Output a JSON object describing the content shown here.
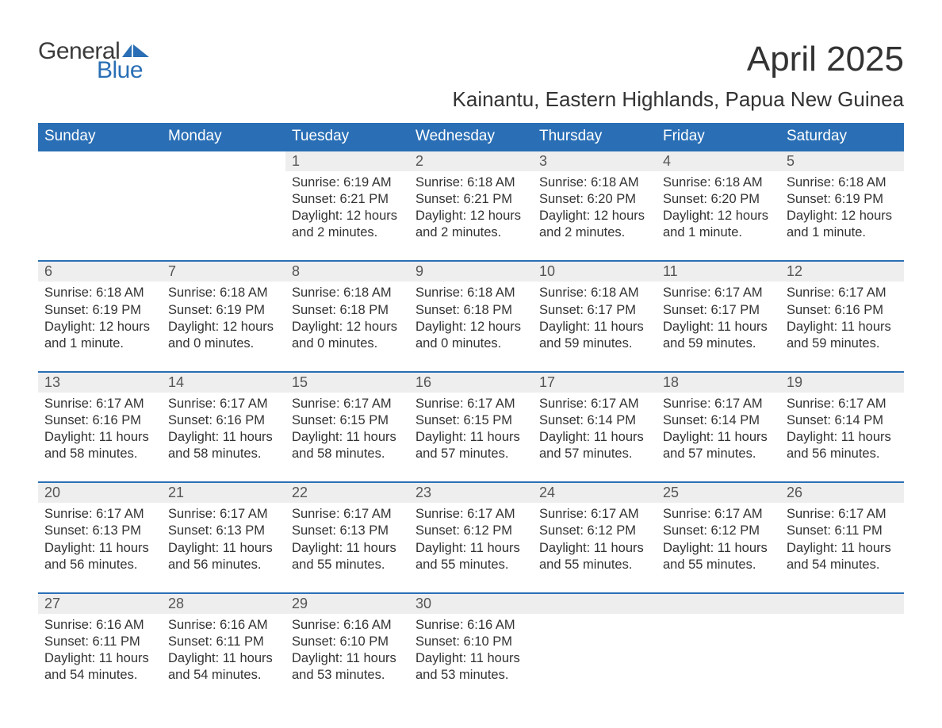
{
  "logo": {
    "text1": "General",
    "text2": "Blue",
    "shape_color": "#2a6fb5",
    "text1_color": "#3b3b3b"
  },
  "title": "April 2025",
  "subtitle": "Kainantu, Eastern Highlands, Papua New Guinea",
  "colors": {
    "header_bg": "#2a6fb5",
    "header_text": "#ffffff",
    "row_sep": "#2a6fb5",
    "daynum_bg": "#eeeeee",
    "body_text": "#333333",
    "page_bg": "#ffffff"
  },
  "fonts": {
    "title_size": 44,
    "subtitle_size": 26,
    "th_size": 19,
    "cell_size": 16.5
  },
  "day_headers": [
    "Sunday",
    "Monday",
    "Tuesday",
    "Wednesday",
    "Thursday",
    "Friday",
    "Saturday"
  ],
  "weeks": [
    [
      null,
      null,
      {
        "n": "1",
        "sr": "Sunrise: 6:19 AM",
        "ss": "Sunset: 6:21 PM",
        "d1": "Daylight: 12 hours",
        "d2": "and 2 minutes."
      },
      {
        "n": "2",
        "sr": "Sunrise: 6:18 AM",
        "ss": "Sunset: 6:21 PM",
        "d1": "Daylight: 12 hours",
        "d2": "and 2 minutes."
      },
      {
        "n": "3",
        "sr": "Sunrise: 6:18 AM",
        "ss": "Sunset: 6:20 PM",
        "d1": "Daylight: 12 hours",
        "d2": "and 2 minutes."
      },
      {
        "n": "4",
        "sr": "Sunrise: 6:18 AM",
        "ss": "Sunset: 6:20 PM",
        "d1": "Daylight: 12 hours",
        "d2": "and 1 minute."
      },
      {
        "n": "5",
        "sr": "Sunrise: 6:18 AM",
        "ss": "Sunset: 6:19 PM",
        "d1": "Daylight: 12 hours",
        "d2": "and 1 minute."
      }
    ],
    [
      {
        "n": "6",
        "sr": "Sunrise: 6:18 AM",
        "ss": "Sunset: 6:19 PM",
        "d1": "Daylight: 12 hours",
        "d2": "and 1 minute."
      },
      {
        "n": "7",
        "sr": "Sunrise: 6:18 AM",
        "ss": "Sunset: 6:19 PM",
        "d1": "Daylight: 12 hours",
        "d2": "and 0 minutes."
      },
      {
        "n": "8",
        "sr": "Sunrise: 6:18 AM",
        "ss": "Sunset: 6:18 PM",
        "d1": "Daylight: 12 hours",
        "d2": "and 0 minutes."
      },
      {
        "n": "9",
        "sr": "Sunrise: 6:18 AM",
        "ss": "Sunset: 6:18 PM",
        "d1": "Daylight: 12 hours",
        "d2": "and 0 minutes."
      },
      {
        "n": "10",
        "sr": "Sunrise: 6:18 AM",
        "ss": "Sunset: 6:17 PM",
        "d1": "Daylight: 11 hours",
        "d2": "and 59 minutes."
      },
      {
        "n": "11",
        "sr": "Sunrise: 6:17 AM",
        "ss": "Sunset: 6:17 PM",
        "d1": "Daylight: 11 hours",
        "d2": "and 59 minutes."
      },
      {
        "n": "12",
        "sr": "Sunrise: 6:17 AM",
        "ss": "Sunset: 6:16 PM",
        "d1": "Daylight: 11 hours",
        "d2": "and 59 minutes."
      }
    ],
    [
      {
        "n": "13",
        "sr": "Sunrise: 6:17 AM",
        "ss": "Sunset: 6:16 PM",
        "d1": "Daylight: 11 hours",
        "d2": "and 58 minutes."
      },
      {
        "n": "14",
        "sr": "Sunrise: 6:17 AM",
        "ss": "Sunset: 6:16 PM",
        "d1": "Daylight: 11 hours",
        "d2": "and 58 minutes."
      },
      {
        "n": "15",
        "sr": "Sunrise: 6:17 AM",
        "ss": "Sunset: 6:15 PM",
        "d1": "Daylight: 11 hours",
        "d2": "and 58 minutes."
      },
      {
        "n": "16",
        "sr": "Sunrise: 6:17 AM",
        "ss": "Sunset: 6:15 PM",
        "d1": "Daylight: 11 hours",
        "d2": "and 57 minutes."
      },
      {
        "n": "17",
        "sr": "Sunrise: 6:17 AM",
        "ss": "Sunset: 6:14 PM",
        "d1": "Daylight: 11 hours",
        "d2": "and 57 minutes."
      },
      {
        "n": "18",
        "sr": "Sunrise: 6:17 AM",
        "ss": "Sunset: 6:14 PM",
        "d1": "Daylight: 11 hours",
        "d2": "and 57 minutes."
      },
      {
        "n": "19",
        "sr": "Sunrise: 6:17 AM",
        "ss": "Sunset: 6:14 PM",
        "d1": "Daylight: 11 hours",
        "d2": "and 56 minutes."
      }
    ],
    [
      {
        "n": "20",
        "sr": "Sunrise: 6:17 AM",
        "ss": "Sunset: 6:13 PM",
        "d1": "Daylight: 11 hours",
        "d2": "and 56 minutes."
      },
      {
        "n": "21",
        "sr": "Sunrise: 6:17 AM",
        "ss": "Sunset: 6:13 PM",
        "d1": "Daylight: 11 hours",
        "d2": "and 56 minutes."
      },
      {
        "n": "22",
        "sr": "Sunrise: 6:17 AM",
        "ss": "Sunset: 6:13 PM",
        "d1": "Daylight: 11 hours",
        "d2": "and 55 minutes."
      },
      {
        "n": "23",
        "sr": "Sunrise: 6:17 AM",
        "ss": "Sunset: 6:12 PM",
        "d1": "Daylight: 11 hours",
        "d2": "and 55 minutes."
      },
      {
        "n": "24",
        "sr": "Sunrise: 6:17 AM",
        "ss": "Sunset: 6:12 PM",
        "d1": "Daylight: 11 hours",
        "d2": "and 55 minutes."
      },
      {
        "n": "25",
        "sr": "Sunrise: 6:17 AM",
        "ss": "Sunset: 6:12 PM",
        "d1": "Daylight: 11 hours",
        "d2": "and 55 minutes."
      },
      {
        "n": "26",
        "sr": "Sunrise: 6:17 AM",
        "ss": "Sunset: 6:11 PM",
        "d1": "Daylight: 11 hours",
        "d2": "and 54 minutes."
      }
    ],
    [
      {
        "n": "27",
        "sr": "Sunrise: 6:16 AM",
        "ss": "Sunset: 6:11 PM",
        "d1": "Daylight: 11 hours",
        "d2": "and 54 minutes."
      },
      {
        "n": "28",
        "sr": "Sunrise: 6:16 AM",
        "ss": "Sunset: 6:11 PM",
        "d1": "Daylight: 11 hours",
        "d2": "and 54 minutes."
      },
      {
        "n": "29",
        "sr": "Sunrise: 6:16 AM",
        "ss": "Sunset: 6:10 PM",
        "d1": "Daylight: 11 hours",
        "d2": "and 53 minutes."
      },
      {
        "n": "30",
        "sr": "Sunrise: 6:16 AM",
        "ss": "Sunset: 6:10 PM",
        "d1": "Daylight: 11 hours",
        "d2": "and 53 minutes."
      },
      null,
      null,
      null
    ]
  ]
}
